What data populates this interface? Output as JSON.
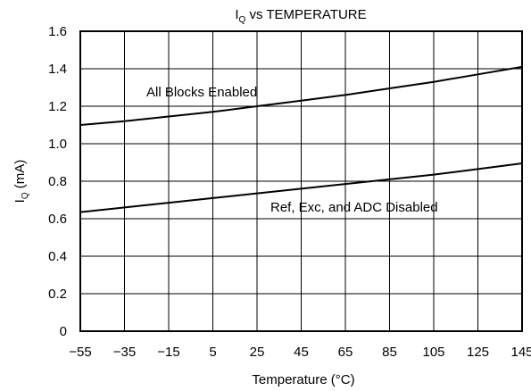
{
  "chart_data": {
    "type": "line",
    "title": {
      "main": "I",
      "sub": "Q",
      "rest": " vs TEMPERATURE"
    },
    "xlabel": "Temperature (°C)",
    "ylabel": {
      "main": "I",
      "sub": "Q",
      "rest": " (mA)"
    },
    "xlim": [
      -55,
      145
    ],
    "ylim": [
      0,
      1.6
    ],
    "x_ticks": [
      -55,
      -35,
      -15,
      5,
      25,
      45,
      65,
      85,
      105,
      125,
      145
    ],
    "x_tick_labels": [
      "−55",
      "−35",
      "−15",
      "5",
      "25",
      "45",
      "65",
      "85",
      "105",
      "125",
      "145"
    ],
    "y_ticks": [
      0,
      0.2,
      0.4,
      0.6,
      0.8,
      1.0,
      1.2,
      1.4,
      1.6
    ],
    "y_tick_labels": [
      "0",
      "0.2",
      "0.4",
      "0.6",
      "0.8",
      "1.0",
      "1.2",
      "1.4",
      "1.6"
    ],
    "grid": true,
    "series": [
      {
        "name": "All Blocks Enabled",
        "x": [
          -55,
          -35,
          -15,
          5,
          25,
          45,
          65,
          85,
          105,
          125,
          145
        ],
        "y": [
          1.1,
          1.12,
          1.145,
          1.17,
          1.2,
          1.23,
          1.26,
          1.295,
          1.33,
          1.37,
          1.41
        ],
        "color": "#000000"
      },
      {
        "name": "Ref, Exc, and ADC Disabled",
        "x": [
          -55,
          -35,
          -15,
          5,
          25,
          45,
          65,
          85,
          105,
          125,
          145
        ],
        "y": [
          0.635,
          0.66,
          0.685,
          0.71,
          0.735,
          0.76,
          0.785,
          0.81,
          0.835,
          0.865,
          0.895
        ],
        "color": "#000000"
      }
    ]
  }
}
